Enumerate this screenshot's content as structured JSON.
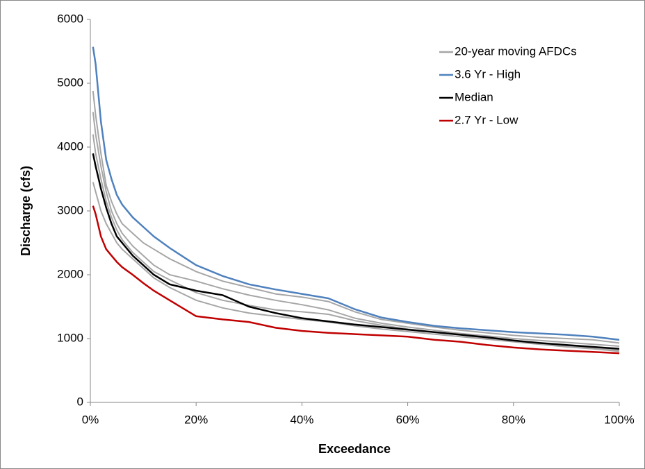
{
  "chart_data": {
    "type": "line",
    "x_label": "Exceedance",
    "y_label": "Discharge (cfs)",
    "x": [
      0.5,
      1,
      2,
      3,
      4,
      5,
      6,
      8,
      10,
      12,
      15,
      20,
      25,
      30,
      35,
      40,
      45,
      50,
      55,
      60,
      65,
      70,
      75,
      80,
      85,
      90,
      95,
      100
    ],
    "series": [
      {
        "name": "20-year moving AFDCs",
        "color": "#a6a6a6",
        "lines": [
          [
            4880,
            4500,
            3900,
            3400,
            3150,
            2950,
            2800,
            2650,
            2500,
            2400,
            2250,
            2050,
            1900,
            1800,
            1700,
            1650,
            1580,
            1420,
            1300,
            1240,
            1180,
            1130,
            1090,
            1050,
            1020,
            1000,
            980,
            930
          ],
          [
            4550,
            4200,
            3700,
            3300,
            3000,
            2800,
            2650,
            2450,
            2300,
            2150,
            2000,
            1900,
            1780,
            1680,
            1600,
            1530,
            1450,
            1320,
            1240,
            1180,
            1130,
            1080,
            1040,
            1000,
            970,
            940,
            910,
            880
          ],
          [
            3450,
            3300,
            3000,
            2800,
            2650,
            2500,
            2400,
            2250,
            2100,
            1950,
            1800,
            1600,
            1480,
            1400,
            1350,
            1300,
            1260,
            1200,
            1150,
            1110,
            1070,
            1030,
            990,
            950,
            910,
            870,
            840,
            800
          ],
          [
            4200,
            3900,
            3500,
            3150,
            2900,
            2700,
            2550,
            2350,
            2200,
            2050,
            1920,
            1720,
            1600,
            1520,
            1450,
            1420,
            1380,
            1280,
            1210,
            1150,
            1100,
            1060,
            1000,
            960,
            920,
            880,
            850,
            820
          ]
        ]
      },
      {
        "name": "3.6 Yr - High",
        "color": "#4f81bd",
        "values": [
          5570,
          5300,
          4400,
          3800,
          3500,
          3250,
          3100,
          2900,
          2750,
          2600,
          2420,
          2150,
          1980,
          1850,
          1770,
          1700,
          1630,
          1460,
          1330,
          1260,
          1200,
          1160,
          1130,
          1100,
          1080,
          1060,
          1030,
          980
        ]
      },
      {
        "name": "Median",
        "color": "#000000",
        "values": [
          3900,
          3700,
          3350,
          3050,
          2800,
          2600,
          2500,
          2300,
          2150,
          2000,
          1850,
          1750,
          1680,
          1500,
          1400,
          1320,
          1270,
          1220,
          1180,
          1140,
          1100,
          1060,
          1020,
          970,
          930,
          900,
          870,
          840
        ]
      },
      {
        "name": "2.7 Yr - Low",
        "color": "#c00000",
        "values": [
          3080,
          2950,
          2600,
          2400,
          2300,
          2200,
          2120,
          2000,
          1870,
          1750,
          1600,
          1350,
          1300,
          1260,
          1170,
          1120,
          1090,
          1070,
          1050,
          1030,
          980,
          950,
          900,
          860,
          830,
          810,
          790,
          770
        ]
      }
    ],
    "xlim": [
      0,
      100
    ],
    "xticks": [
      {
        "value": 0,
        "label": "0%"
      },
      {
        "value": 20,
        "label": "20%"
      },
      {
        "value": 40,
        "label": "40%"
      },
      {
        "value": 60,
        "label": "60%"
      },
      {
        "value": 80,
        "label": "80%"
      },
      {
        "value": 100,
        "label": "100%"
      }
    ],
    "ylim": [
      0,
      6000
    ],
    "yticks": [
      0,
      1000,
      2000,
      3000,
      4000,
      5000,
      6000
    ],
    "grid": false,
    "legend": "top-right"
  }
}
